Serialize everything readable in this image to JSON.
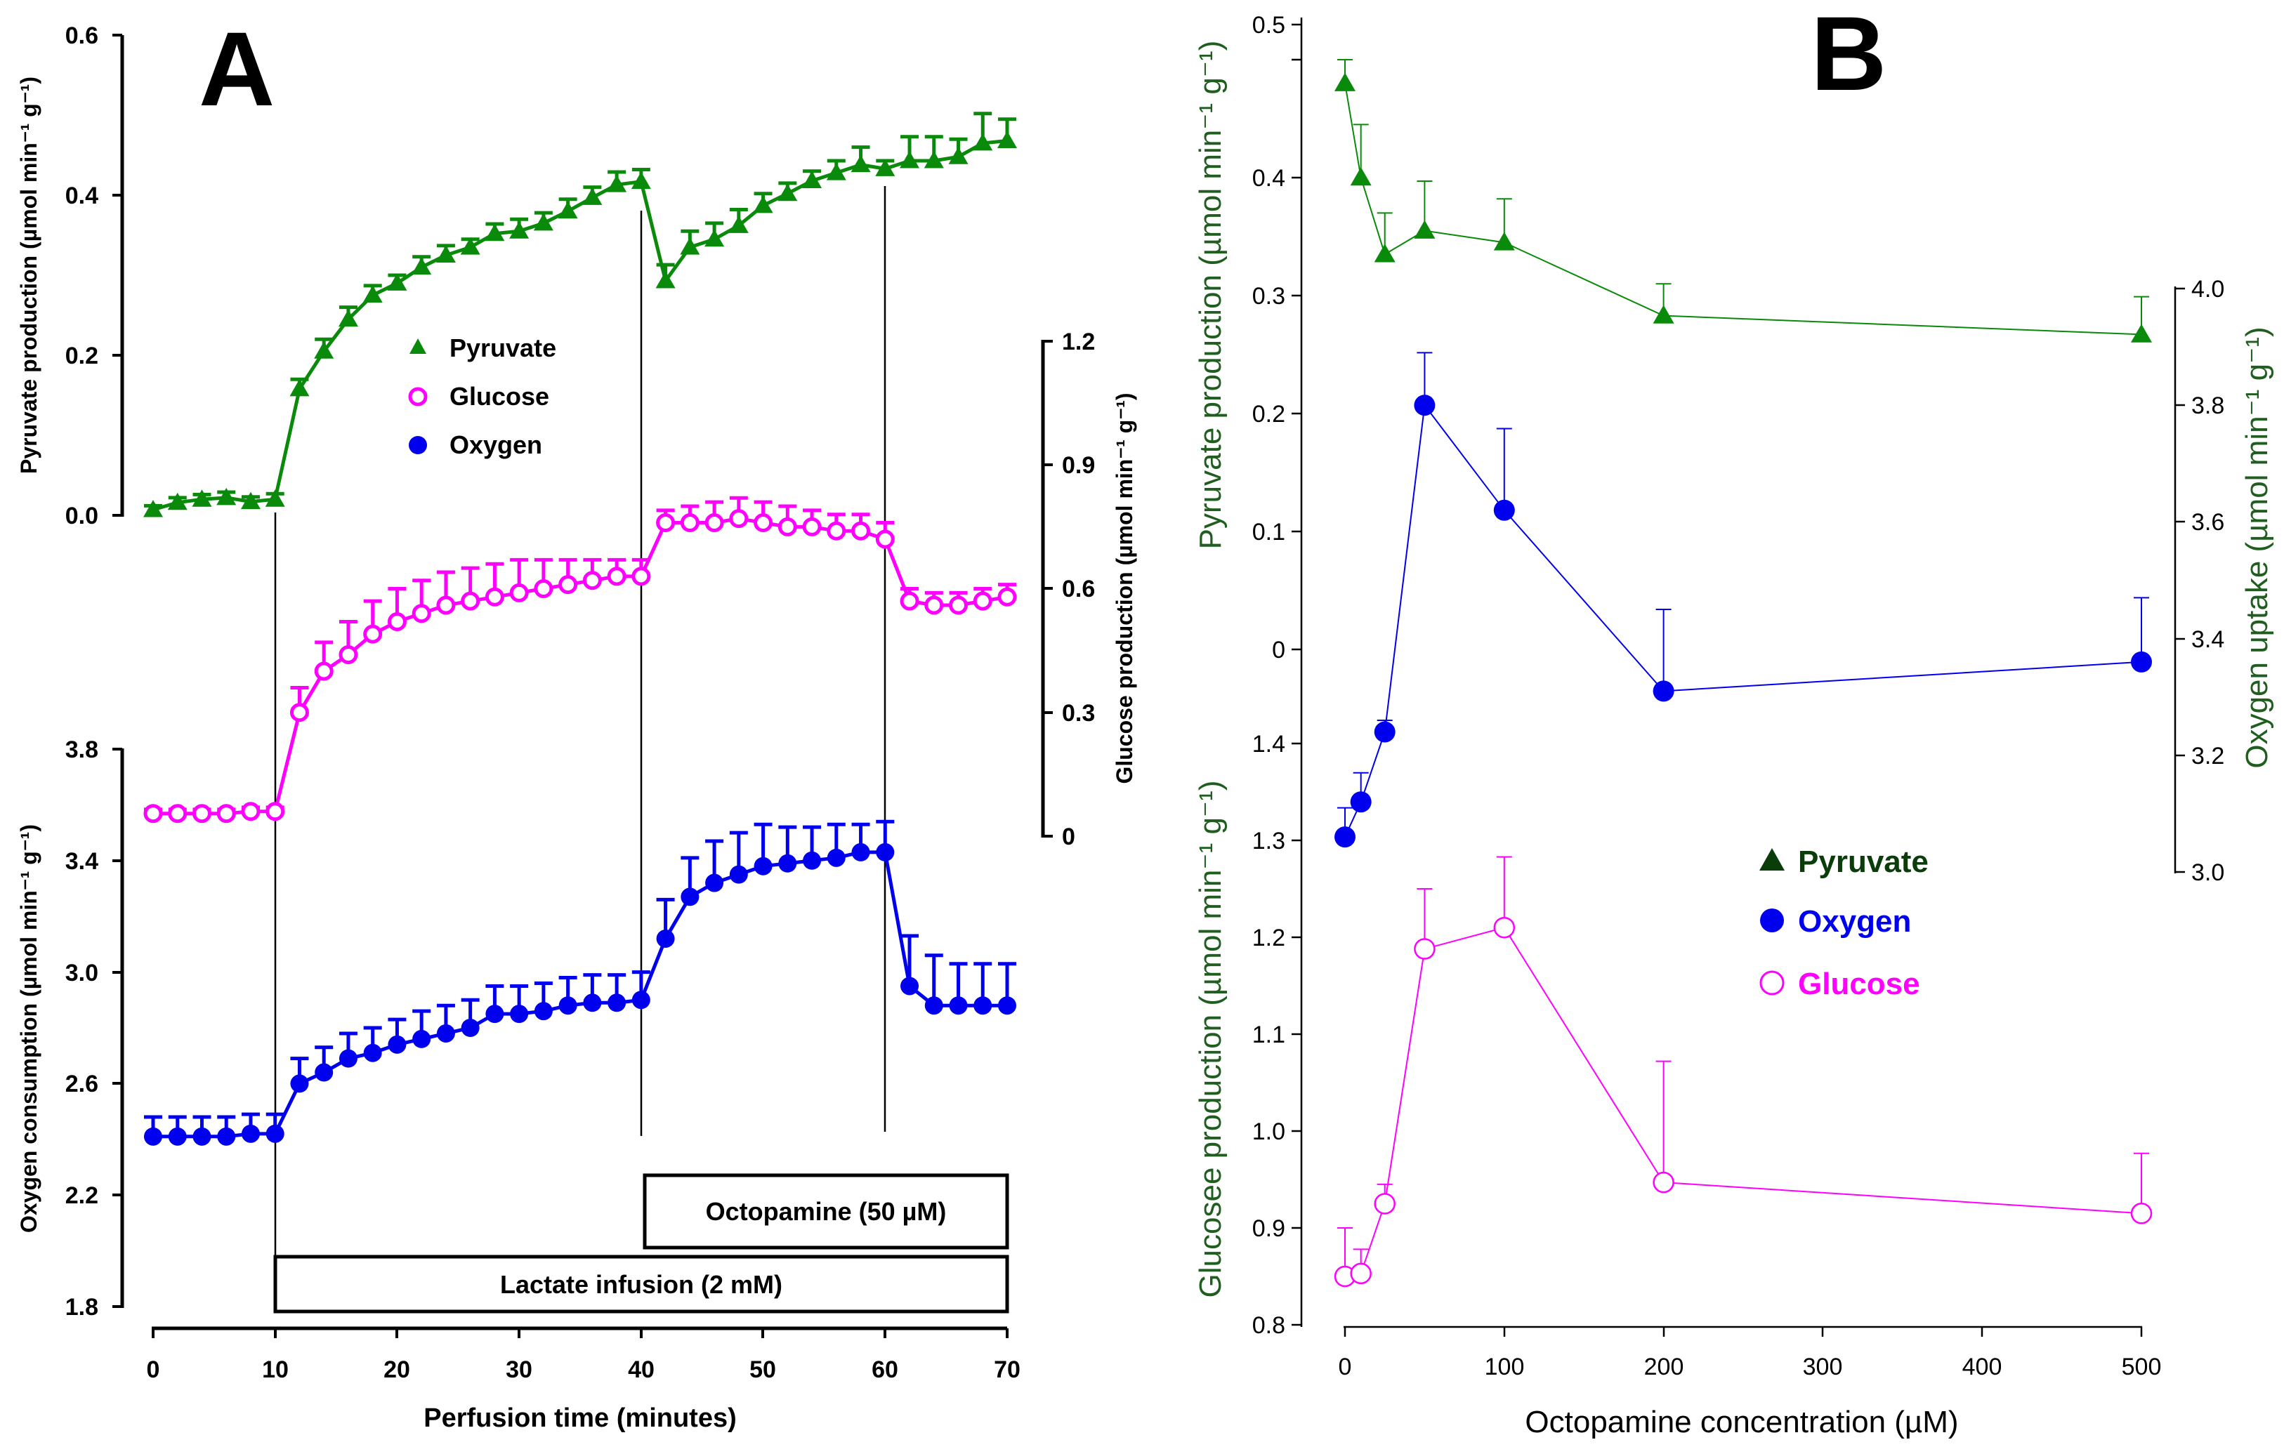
{
  "colors": {
    "pyruvate": "#0a8a0a",
    "glucose": "#ff00ff",
    "oxygen": "#0000ee",
    "axis_green": "#1f5e1f",
    "legend_dark_green": "#0b3d0b"
  },
  "panel_a": {
    "letter": "A",
    "xlabel": "Perfusion time (minutes)",
    "x_ticks": [
      "0",
      "10",
      "20",
      "30",
      "40",
      "50",
      "60",
      "70"
    ],
    "pyruvate_ylabel": "Pyruvate production (µmol min⁻¹ g⁻¹)",
    "pyruvate_ticks": [
      "0.0",
      "0.2",
      "0.4",
      "0.6"
    ],
    "glucose_ylabel": "Glucose production (µmol min⁻¹ g⁻¹)",
    "glucose_ticks": [
      "0",
      "0.3",
      "0.6",
      "0.9",
      "1.2"
    ],
    "oxygen_ylabel": "Oxygen consumption (µmol min⁻¹ g⁻¹)",
    "oxygen_ticks": [
      "1.8",
      "2.2",
      "2.6",
      "3.0",
      "3.4",
      "3.8"
    ],
    "legend": [
      "Pyruvate",
      "Glucose",
      "Oxygen"
    ],
    "box_octopamine": "Octopamine   (50 µM)",
    "box_lactate": "Lactate infusion (2 mM)"
  },
  "panel_b": {
    "letter": "B",
    "xlabel": "Octopamine concentration (µM)",
    "x_ticks": [
      "0",
      "100",
      "200",
      "300",
      "400",
      "500"
    ],
    "pyruvate_ylabel": "Pyruvate production (µmol min⁻¹ g⁻¹)",
    "pyruvate_ticks": [
      "0",
      "0.1",
      "0.2",
      "0.3",
      "0.4",
      "0.5"
    ],
    "oxygen_ylabel": "Oxygen uptake (µmol min⁻¹ g⁻¹)",
    "oxygen_ticks": [
      "3.0",
      "3.2",
      "3.4",
      "3.6",
      "3.8",
      "4.0"
    ],
    "glucose_ylabel": "Glucosee production (µmol min⁻¹ g⁻¹)",
    "glucose_ticks": [
      "0.8",
      "0.9",
      "1.0",
      "1.1",
      "1.2",
      "1.3",
      "1.4"
    ],
    "legend": [
      "Pyruvate",
      "Oxygen",
      "Glucose"
    ]
  },
  "chart_data": [
    {
      "type": "line",
      "title": "A",
      "xlabel": "Perfusion time (minutes)",
      "xlim": [
        0,
        70
      ],
      "series": [
        {
          "name": "Pyruvate",
          "ylabel": "Pyruvate production (µmol min⁻¹ g⁻¹)",
          "ylim": [
            0,
            0.6
          ],
          "x": [
            0,
            2,
            4,
            6,
            8,
            10,
            12,
            14,
            16,
            18,
            20,
            22,
            24,
            26,
            28,
            30,
            32,
            34,
            36,
            38,
            40,
            42,
            44,
            46,
            48,
            50,
            52,
            54,
            56,
            58,
            60,
            62,
            64,
            66,
            68,
            70
          ],
          "y": [
            0.007,
            0.016,
            0.02,
            0.022,
            0.017,
            0.02,
            0.158,
            0.205,
            0.245,
            0.275,
            0.29,
            0.31,
            0.325,
            0.335,
            0.352,
            0.355,
            0.365,
            0.38,
            0.397,
            0.413,
            0.417,
            0.293,
            0.335,
            0.345,
            0.362,
            0.387,
            0.402,
            0.418,
            0.428,
            0.438,
            0.433,
            0.443,
            0.443,
            0.448,
            0.465,
            0.468
          ],
          "err": [
            0.005,
            0.006,
            0.006,
            0.007,
            0.006,
            0.007,
            0.012,
            0.015,
            0.015,
            0.012,
            0.01,
            0.013,
            0.012,
            0.01,
            0.012,
            0.015,
            0.013,
            0.015,
            0.013,
            0.016,
            0.015,
            0.02,
            0.02,
            0.02,
            0.02,
            0.015,
            0.013,
            0.012,
            0.015,
            0.022,
            0.01,
            0.03,
            0.03,
            0.022,
            0.037,
            0.027
          ]
        },
        {
          "name": "Glucose",
          "ylabel": "Glucose production (µmol min⁻¹ g⁻¹)",
          "ylim": [
            0,
            1.2
          ],
          "x": [
            0,
            2,
            4,
            6,
            8,
            10,
            12,
            14,
            16,
            18,
            20,
            22,
            24,
            26,
            28,
            30,
            32,
            34,
            36,
            38,
            40,
            42,
            44,
            46,
            48,
            50,
            52,
            54,
            56,
            58,
            60,
            62,
            64,
            66,
            68,
            70
          ],
          "y": [
            0.055,
            0.055,
            0.055,
            0.055,
            0.06,
            0.06,
            0.3,
            0.4,
            0.44,
            0.49,
            0.52,
            0.54,
            0.56,
            0.57,
            0.58,
            0.59,
            0.6,
            0.61,
            0.62,
            0.63,
            0.63,
            0.76,
            0.76,
            0.76,
            0.77,
            0.76,
            0.75,
            0.75,
            0.74,
            0.74,
            0.72,
            0.57,
            0.56,
            0.56,
            0.57,
            0.58
          ],
          "err": [
            0.01,
            0.01,
            0.01,
            0.01,
            0.01,
            0.01,
            0.06,
            0.07,
            0.08,
            0.08,
            0.08,
            0.08,
            0.08,
            0.08,
            0.08,
            0.08,
            0.07,
            0.06,
            0.05,
            0.04,
            0.04,
            0.03,
            0.04,
            0.05,
            0.05,
            0.05,
            0.05,
            0.04,
            0.04,
            0.04,
            0.04,
            0.03,
            0.03,
            0.03,
            0.03,
            0.03
          ]
        },
        {
          "name": "Oxygen",
          "ylabel": "Oxygen consumption (µmol min⁻¹ g⁻¹)",
          "ylim": [
            1.8,
            3.8
          ],
          "x": [
            0,
            2,
            4,
            6,
            8,
            10,
            12,
            14,
            16,
            18,
            20,
            22,
            24,
            26,
            28,
            30,
            32,
            34,
            36,
            38,
            40,
            42,
            44,
            46,
            48,
            50,
            52,
            54,
            56,
            58,
            60,
            62,
            64,
            66,
            68,
            70
          ],
          "y": [
            2.41,
            2.41,
            2.41,
            2.41,
            2.42,
            2.42,
            2.6,
            2.64,
            2.69,
            2.71,
            2.74,
            2.76,
            2.78,
            2.8,
            2.85,
            2.85,
            2.86,
            2.88,
            2.89,
            2.89,
            2.9,
            3.12,
            3.27,
            3.32,
            3.35,
            3.38,
            3.39,
            3.4,
            3.41,
            3.43,
            3.43,
            2.95,
            2.88,
            2.88,
            2.88,
            2.88
          ],
          "err": [
            0.07,
            0.07,
            0.07,
            0.07,
            0.07,
            0.07,
            0.09,
            0.09,
            0.09,
            0.09,
            0.09,
            0.1,
            0.1,
            0.1,
            0.1,
            0.1,
            0.1,
            0.1,
            0.1,
            0.1,
            0.1,
            0.14,
            0.14,
            0.15,
            0.15,
            0.15,
            0.13,
            0.12,
            0.12,
            0.1,
            0.11,
            0.18,
            0.18,
            0.15,
            0.15,
            0.15
          ]
        }
      ],
      "legend": [
        "Pyruvate",
        "Glucose",
        "Oxygen"
      ],
      "annotations": [
        "Octopamine   (50 µM)",
        "Lactate infusion (2 mM)"
      ],
      "event_lines_x": [
        10,
        40,
        60
      ]
    },
    {
      "type": "line",
      "title": "B",
      "xlabel": "Octopamine concentration (µM)",
      "xlim": [
        0,
        500
      ],
      "series": [
        {
          "name": "Pyruvate",
          "ylabel": "Pyruvate production (µmol min⁻¹ g⁻¹)",
          "ylim": [
            0,
            0.5
          ],
          "x": [
            0,
            10,
            25,
            50,
            100,
            200,
            500
          ],
          "y": [
            0.48,
            0.4,
            0.335,
            0.355,
            0.345,
            0.283,
            0.267
          ],
          "err": [
            0.02,
            0.045,
            0.035,
            0.042,
            0.037,
            0.027,
            0.032
          ]
        },
        {
          "name": "Oxygen",
          "ylabel": "Oxygen uptake (µmol min⁻¹ g⁻¹)",
          "ylim": [
            3.0,
            4.0
          ],
          "x": [
            0,
            10,
            25,
            50,
            100,
            200,
            500
          ],
          "y": [
            3.06,
            3.12,
            3.24,
            3.8,
            3.62,
            3.31,
            3.36
          ],
          "err": [
            0.05,
            0.05,
            0.02,
            0.09,
            0.14,
            0.14,
            0.11
          ]
        },
        {
          "name": "Glucose",
          "ylabel": "Glucosee production (µmol min⁻¹ g⁻¹)",
          "ylim": [
            0.8,
            1.4
          ],
          "x": [
            0,
            10,
            25,
            50,
            100,
            200,
            500
          ],
          "y": [
            0.85,
            0.853,
            0.925,
            1.188,
            1.21,
            0.947,
            0.915
          ],
          "err": [
            0.05,
            0.025,
            0.02,
            0.062,
            0.073,
            0.125,
            0.062
          ]
        }
      ],
      "legend": [
        "Pyruvate",
        "Oxygen",
        "Glucose"
      ]
    }
  ]
}
